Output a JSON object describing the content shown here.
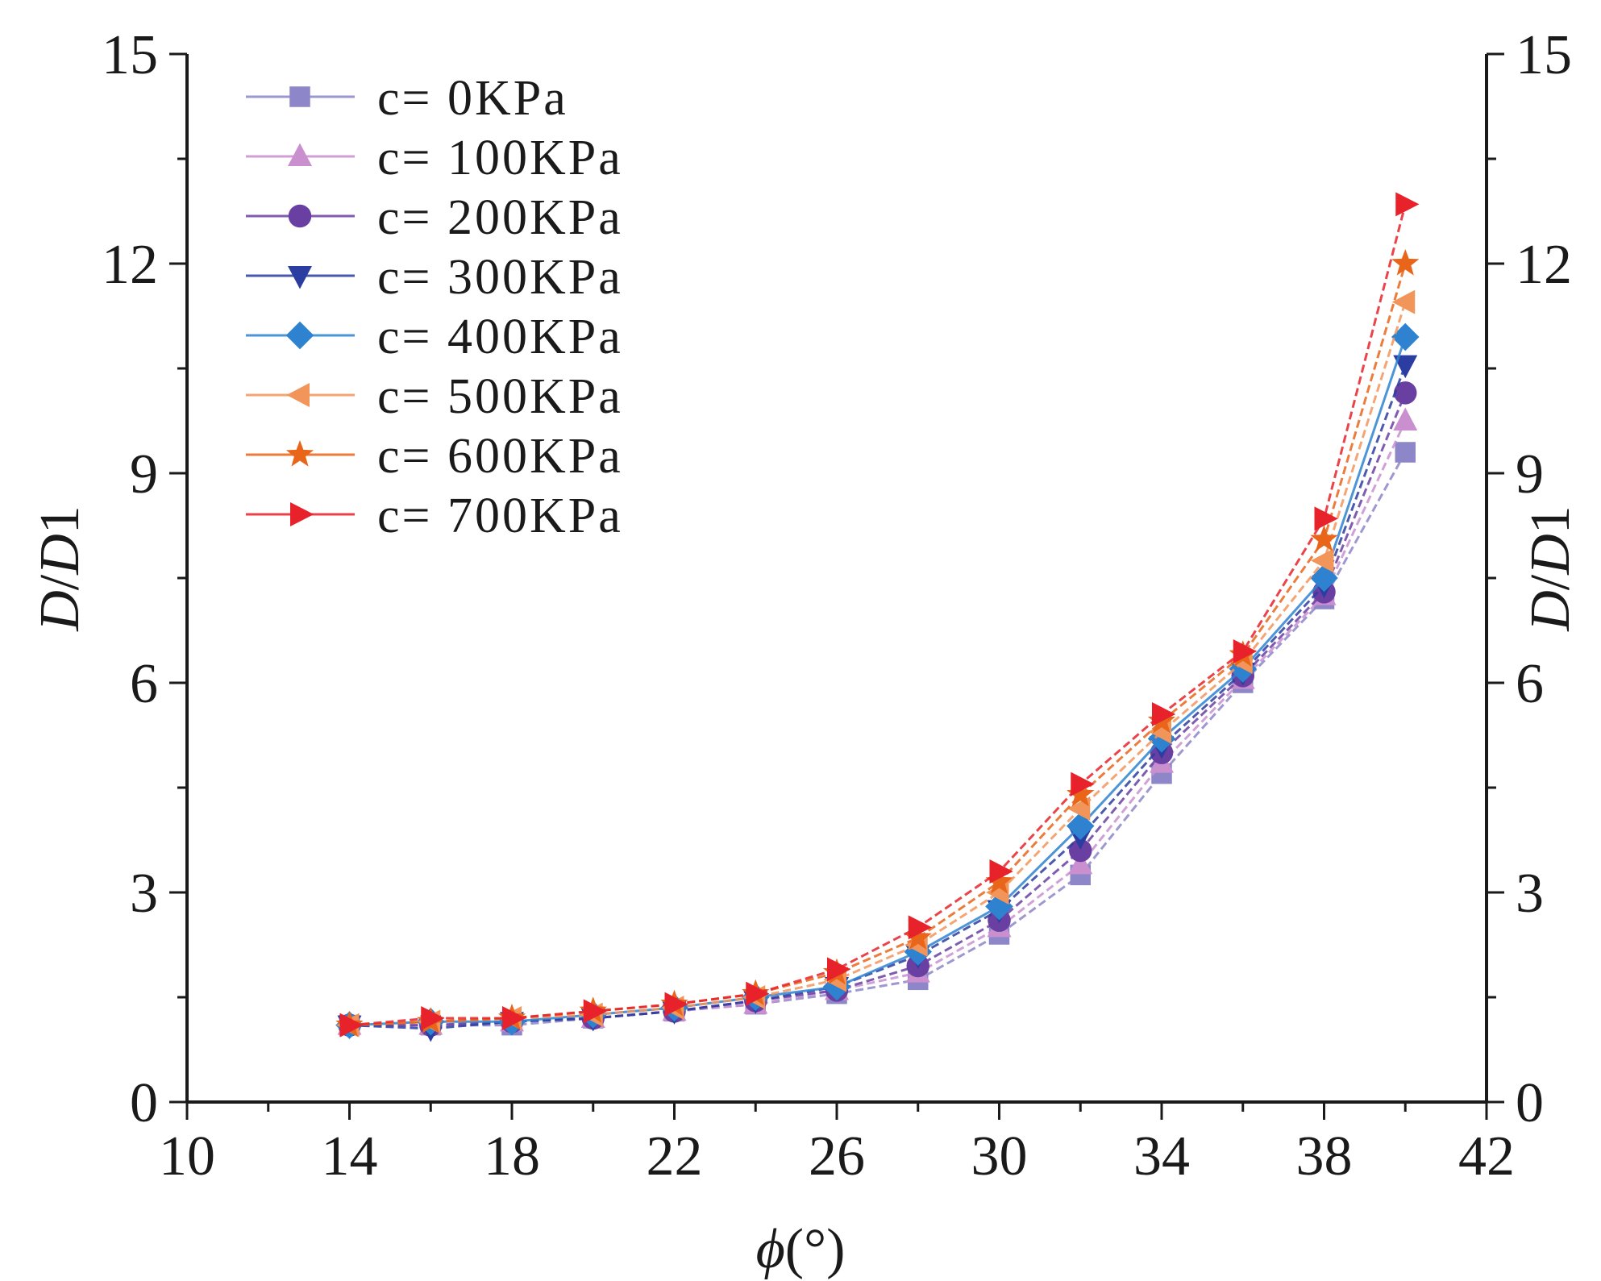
{
  "chart_data": {
    "type": "line",
    "xlabel_symbol": "ϕ",
    "xlabel_unit": "(°)",
    "ylabel_left": {
      "italic1": "D",
      "sep": "/",
      "italic2": "D",
      "suffix": "1"
    },
    "ylabel_right": {
      "italic1": "D",
      "sep": "/",
      "italic2": "D",
      "suffix": "1"
    },
    "xlim": [
      10,
      42
    ],
    "ylim": [
      0,
      15
    ],
    "x_ticks": [
      "10",
      "14",
      "18",
      "22",
      "26",
      "30",
      "34",
      "38",
      "42"
    ],
    "y_ticks_left": [
      "0",
      "3",
      "6",
      "9",
      "12",
      "15"
    ],
    "y_ticks_right": [
      "0",
      "3",
      "6",
      "9",
      "12",
      "15"
    ],
    "x": [
      14,
      16,
      18,
      20,
      22,
      24,
      26,
      28,
      30,
      32,
      34,
      36,
      38,
      40
    ],
    "series": [
      {
        "name": "c= 0KPa",
        "color": "#8d86c9",
        "marker": "square",
        "values": [
          1.1,
          1.1,
          1.1,
          1.2,
          1.3,
          1.4,
          1.55,
          1.75,
          2.4,
          3.25,
          4.7,
          6.0,
          7.2,
          9.3
        ]
      },
      {
        "name": "c= 100KPa",
        "color": "#c98fcf",
        "marker": "triangle-up",
        "values": [
          1.1,
          1.1,
          1.15,
          1.2,
          1.3,
          1.4,
          1.6,
          1.85,
          2.5,
          3.4,
          4.85,
          6.05,
          7.25,
          9.75
        ]
      },
      {
        "name": "c= 200KPa",
        "color": "#6a3fa2",
        "marker": "circle",
        "values": [
          1.1,
          1.1,
          1.15,
          1.2,
          1.3,
          1.45,
          1.6,
          1.95,
          2.6,
          3.6,
          5.0,
          6.1,
          7.3,
          10.15
        ]
      },
      {
        "name": "c= 300KPa",
        "color": "#2b3da0",
        "marker": "triangle-down",
        "values": [
          1.1,
          1.05,
          1.15,
          1.2,
          1.3,
          1.45,
          1.65,
          2.1,
          2.75,
          3.8,
          5.1,
          6.15,
          7.4,
          10.55
        ]
      },
      {
        "name": "c= 400KPa",
        "color": "#2e82d0",
        "marker": "diamond",
        "values": [
          1.1,
          1.15,
          1.15,
          1.25,
          1.35,
          1.5,
          1.65,
          2.15,
          2.8,
          3.95,
          5.2,
          6.2,
          7.5,
          10.95
        ]
      },
      {
        "name": "c= 500KPa",
        "color": "#f2955a",
        "marker": "triangle-left",
        "values": [
          1.1,
          1.15,
          1.2,
          1.25,
          1.35,
          1.5,
          1.75,
          2.25,
          3.0,
          4.2,
          5.3,
          6.3,
          7.75,
          11.45
        ]
      },
      {
        "name": "c= 600KPa",
        "color": "#e8651a",
        "marker": "star",
        "values": [
          1.1,
          1.15,
          1.2,
          1.3,
          1.4,
          1.55,
          1.85,
          2.35,
          3.15,
          4.4,
          5.45,
          6.4,
          8.05,
          12.0
        ]
      },
      {
        "name": "c= 700KPa",
        "color": "#e8222a",
        "marker": "triangle-right",
        "values": [
          1.1,
          1.2,
          1.2,
          1.3,
          1.4,
          1.55,
          1.9,
          2.5,
          3.3,
          4.55,
          5.55,
          6.45,
          8.35,
          12.85
        ]
      }
    ]
  }
}
